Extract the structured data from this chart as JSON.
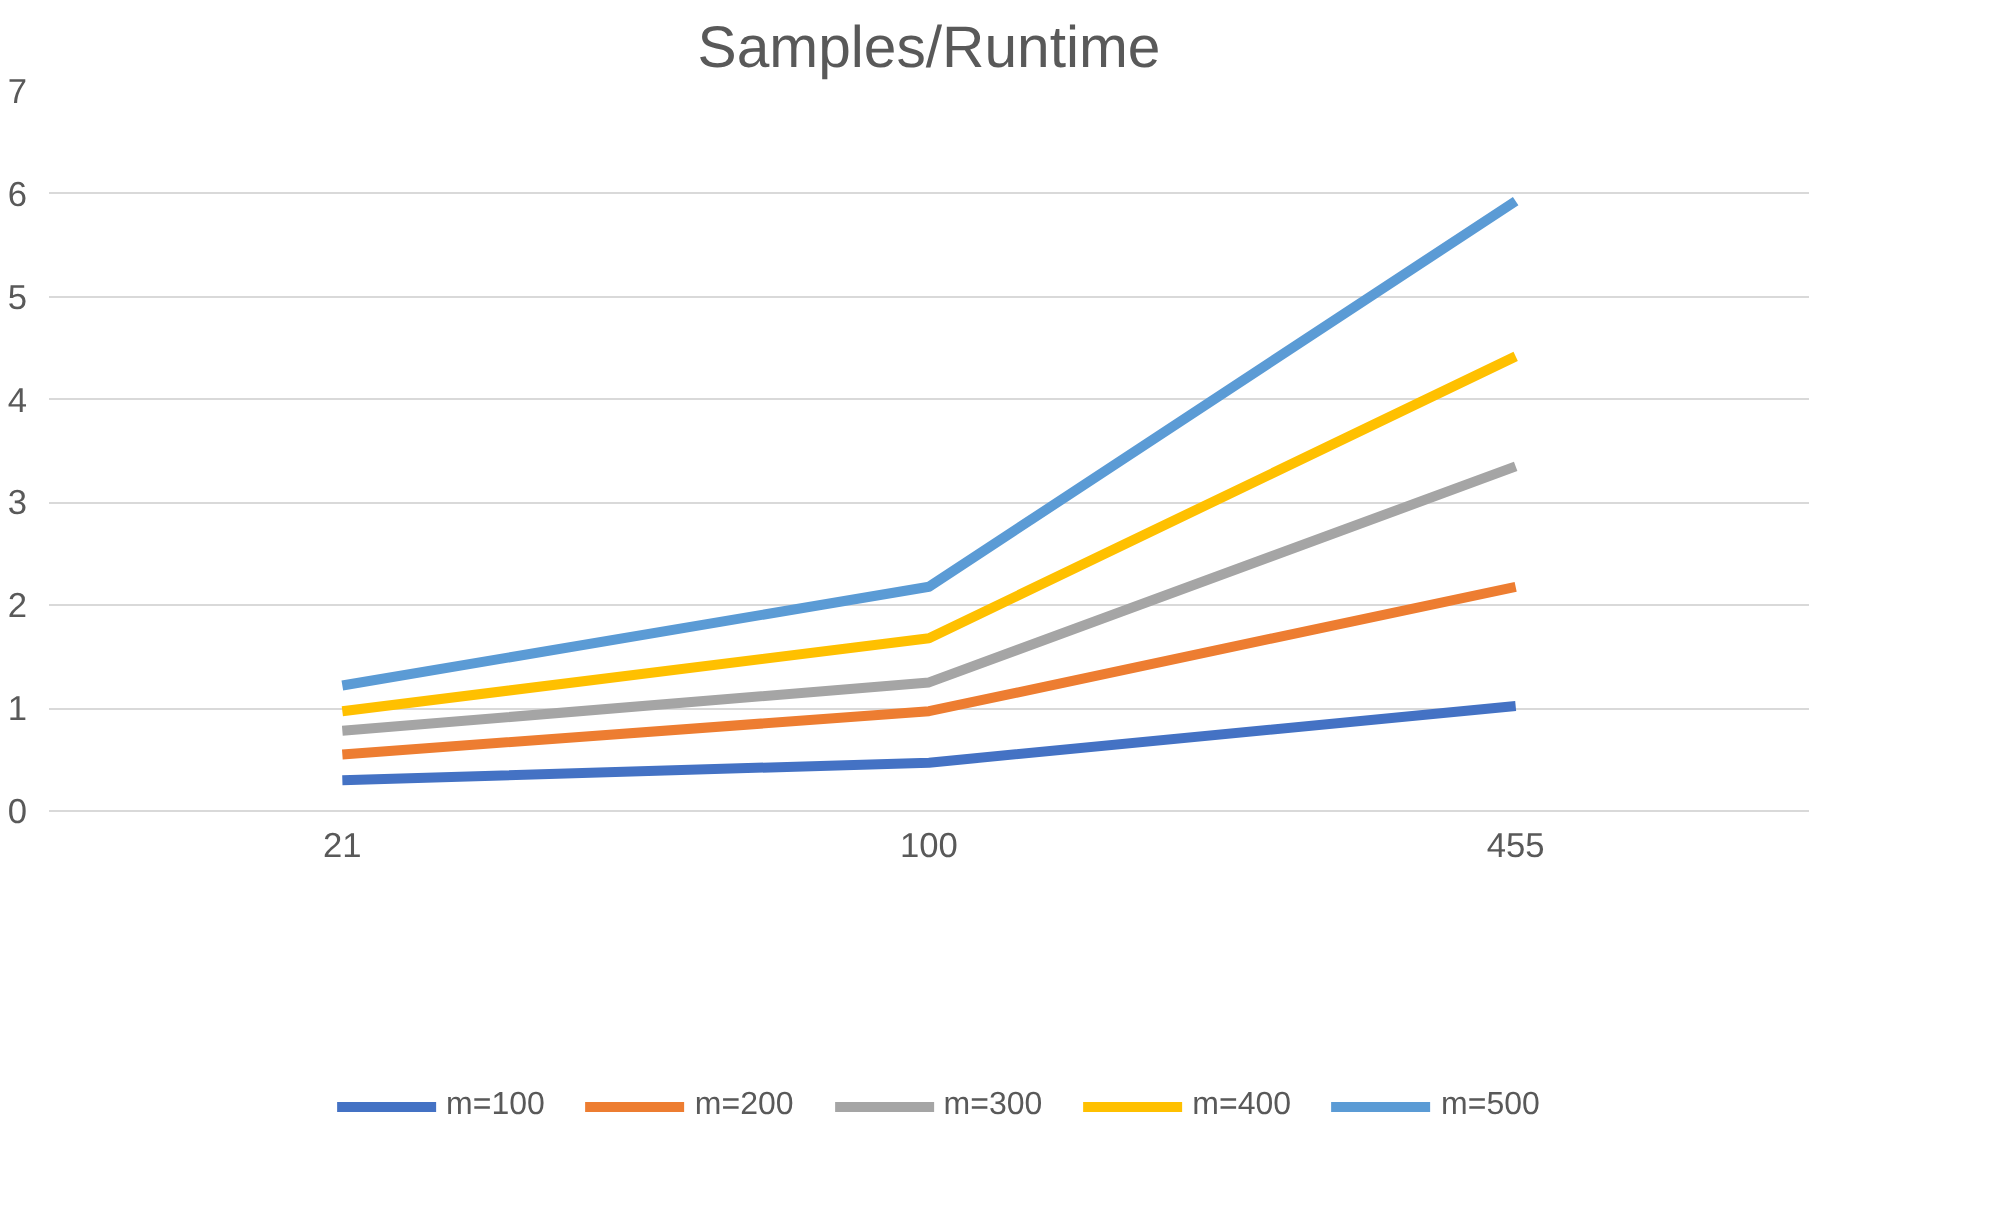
{
  "chart_data": {
    "type": "line",
    "title": "Samples/Runtime",
    "categories": [
      "21",
      "100",
      "455"
    ],
    "series": [
      {
        "name": "m=100",
        "color": "#4472c4",
        "values": [
          0.3,
          0.47,
          1.02
        ]
      },
      {
        "name": "m=200",
        "color": "#ed7d31",
        "values": [
          0.55,
          0.97,
          2.18
        ]
      },
      {
        "name": "m=300",
        "color": "#a5a5a5",
        "values": [
          0.78,
          1.25,
          3.35
        ]
      },
      {
        "name": "m=400",
        "color": "#ffc000",
        "values": [
          0.97,
          1.68,
          4.42
        ]
      },
      {
        "name": "m=500",
        "color": "#5b9bd5",
        "values": [
          1.22,
          2.18,
          5.93
        ]
      }
    ],
    "ylim": [
      0,
      7
    ],
    "yticks": [
      0,
      1,
      2,
      3,
      4,
      5,
      6,
      7
    ],
    "grid": "y",
    "legend": "bottom",
    "marker": "none",
    "line_style": "solid"
  }
}
